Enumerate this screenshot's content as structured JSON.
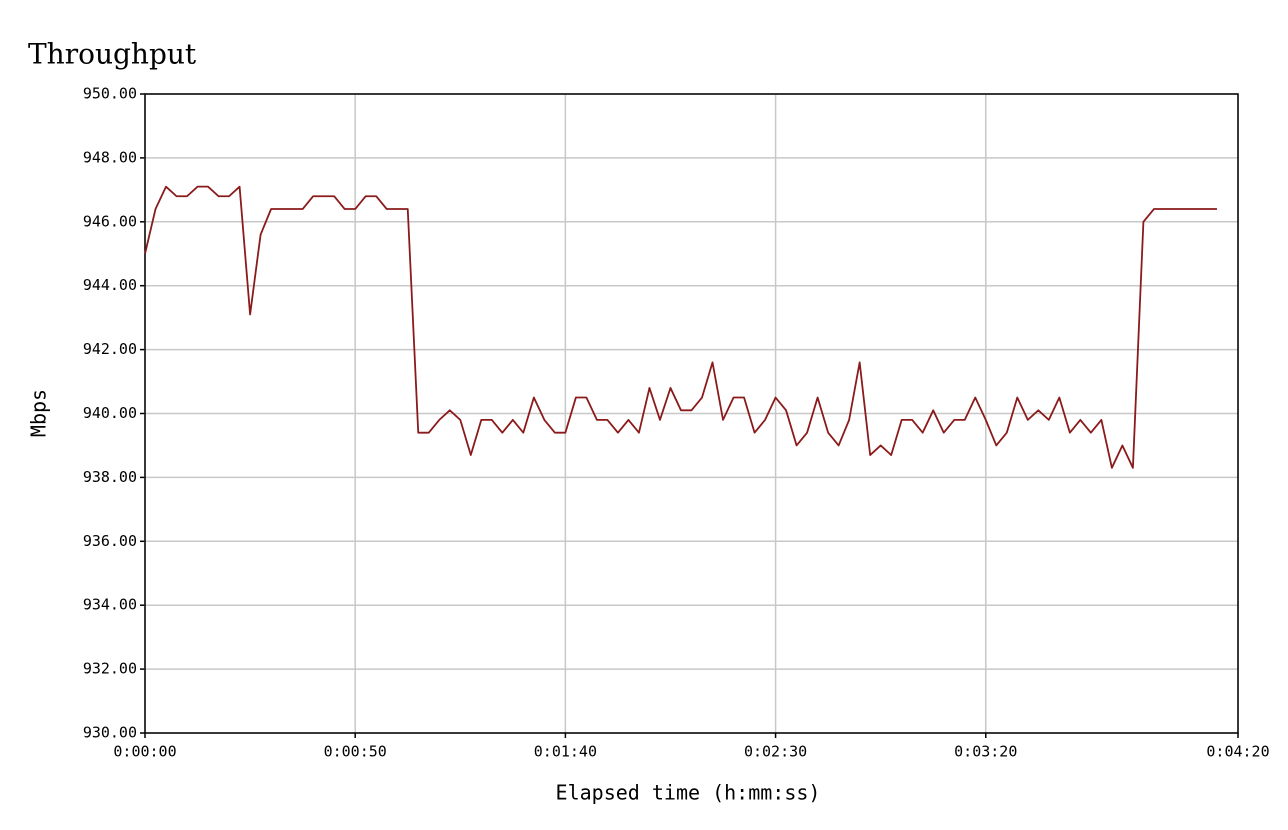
{
  "chart_data": {
    "type": "line",
    "title": "Throughput",
    "x_label": "Elapsed time (h:mm:ss)",
    "y_label": "Mbps",
    "x": [
      0,
      2.5,
      5,
      7.5,
      10,
      12.5,
      15,
      17.5,
      20,
      22.5,
      25,
      27.5,
      30,
      32.5,
      35,
      37.5,
      40,
      42.5,
      45,
      47.5,
      50,
      52.5,
      55,
      57.5,
      60,
      62.5,
      65,
      67.5,
      70,
      72.5,
      75,
      77.5,
      80,
      82.5,
      85,
      87.5,
      90,
      92.5,
      95,
      97.5,
      100,
      102.5,
      105,
      107.5,
      110,
      112.5,
      115,
      117.5,
      120,
      122.5,
      125,
      127.5,
      130,
      132.5,
      135,
      137.5,
      140,
      142.5,
      145,
      147.5,
      150,
      152.5,
      155,
      157.5,
      160,
      162.5,
      165,
      167.5,
      170,
      172.5,
      175,
      177.5,
      180,
      182.5,
      185,
      187.5,
      190,
      192.5,
      195,
      197.5,
      200,
      202.5,
      205,
      207.5,
      210,
      212.5,
      215,
      217.5,
      220,
      222.5,
      225,
      227.5,
      230,
      232.5,
      235,
      237.5,
      240,
      242.5,
      245,
      247.5,
      250,
      252.5,
      255
    ],
    "series": [
      {
        "name": "Throughput",
        "color": "#8b1a1a",
        "values": [
          945.0,
          946.4,
          947.1,
          946.8,
          946.8,
          947.1,
          947.1,
          946.8,
          946.8,
          947.1,
          943.1,
          945.6,
          946.4,
          946.4,
          946.4,
          946.4,
          946.8,
          946.8,
          946.8,
          946.4,
          946.4,
          946.8,
          946.8,
          946.4,
          946.4,
          946.4,
          939.4,
          939.4,
          939.8,
          940.1,
          939.8,
          938.7,
          939.8,
          939.8,
          939.4,
          939.8,
          939.4,
          940.5,
          939.8,
          939.4,
          939.4,
          940.5,
          940.5,
          939.8,
          939.8,
          939.4,
          939.8,
          939.4,
          940.8,
          939.8,
          940.8,
          940.1,
          940.1,
          940.5,
          941.6,
          939.8,
          940.5,
          940.5,
          939.4,
          939.8,
          940.5,
          940.1,
          939.0,
          939.4,
          940.5,
          939.4,
          939.0,
          939.8,
          941.6,
          938.7,
          939.0,
          938.7,
          939.8,
          939.8,
          939.4,
          940.1,
          939.4,
          939.8,
          939.8,
          940.5,
          939.8,
          939.0,
          939.4,
          940.5,
          939.8,
          940.1,
          939.8,
          940.5,
          939.4,
          939.8,
          939.4,
          939.8,
          938.3,
          939.0,
          938.3,
          946.0,
          946.4,
          946.4,
          946.4,
          946.4,
          946.4,
          946.4,
          946.4
        ]
      }
    ],
    "xlim": [
      0,
      260
    ],
    "xticks": [
      {
        "value": 0,
        "label": "0:00:00"
      },
      {
        "value": 50,
        "label": "0:00:50"
      },
      {
        "value": 100,
        "label": "0:01:40"
      },
      {
        "value": 150,
        "label": "0:02:30"
      },
      {
        "value": 200,
        "label": "0:03:20"
      },
      {
        "value": 260,
        "label": "0:04:20"
      }
    ],
    "ylim": [
      930,
      950
    ],
    "yticks": [
      {
        "value": 930,
        "label": "930.00"
      },
      {
        "value": 932,
        "label": "932.00"
      },
      {
        "value": 934,
        "label": "934.00"
      },
      {
        "value": 936,
        "label": "936.00"
      },
      {
        "value": 938,
        "label": "938.00"
      },
      {
        "value": 940,
        "label": "940.00"
      },
      {
        "value": 942,
        "label": "942.00"
      },
      {
        "value": 944,
        "label": "944.00"
      },
      {
        "value": 946,
        "label": "946.00"
      },
      {
        "value": 948,
        "label": "948.00"
      },
      {
        "value": 950,
        "label": "950.00"
      }
    ],
    "grid": true
  }
}
